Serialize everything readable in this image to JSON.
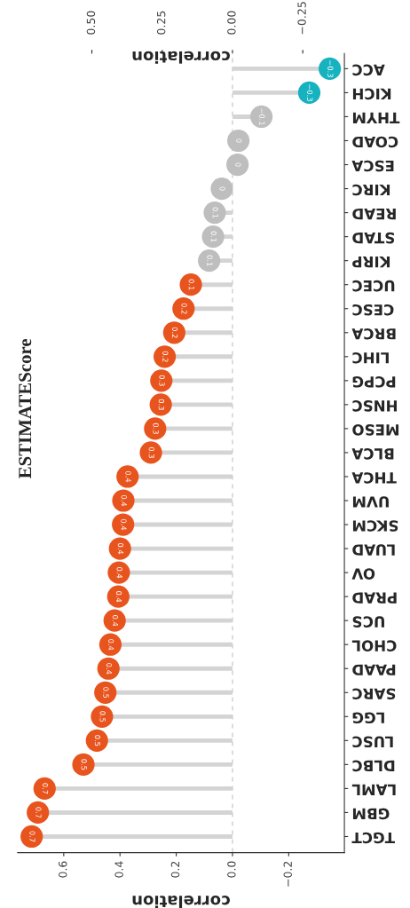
{
  "chart_data": {
    "type": "lollipop",
    "orientation": "horizontal",
    "title": "ESTIMATEScore",
    "xlabel": "correlation",
    "x2label": "correlation",
    "categories": [
      "ACC",
      "KICH",
      "THYM",
      "COAD",
      "ESCA",
      "KIRC",
      "READ",
      "STAD",
      "KIRP",
      "UCEC",
      "CESC",
      "BRCA",
      "LIHC",
      "PCPG",
      "HNSC",
      "MESO",
      "BLCA",
      "THCA",
      "UVM",
      "SKCM",
      "LUAD",
      "OV",
      "PRAD",
      "UCS",
      "CHOL",
      "PAAD",
      "SARC",
      "LGG",
      "LUSC",
      "DLBC",
      "LAML",
      "GBM",
      "TGCT"
    ],
    "values": [
      -0.346,
      -0.273,
      -0.103,
      -0.021,
      -0.018,
      0.038,
      0.063,
      0.069,
      0.083,
      0.148,
      0.174,
      0.207,
      0.241,
      0.253,
      0.255,
      0.275,
      0.29,
      0.373,
      0.388,
      0.389,
      0.4,
      0.404,
      0.406,
      0.419,
      0.434,
      0.441,
      0.452,
      0.464,
      0.482,
      0.53,
      0.668,
      0.692,
      0.714
    ],
    "value_labels": [
      "−0.3",
      "−0.3",
      "−0.1",
      "0",
      "0",
      "0",
      "0.1",
      "0.1",
      "0.1",
      "0.1",
      "0.2",
      "0.2",
      "0.2",
      "0.3",
      "0.3",
      "0.3",
      "0.3",
      "0.4",
      "0.4",
      "0.4",
      "0.4",
      "0.4",
      "0.4",
      "0.4",
      "0.4",
      "0.4",
      "0.5",
      "0.5",
      "0.5",
      "0.5",
      "0.7",
      "0.7",
      "0.7"
    ],
    "colors": [
      "#17b2c0",
      "#17b2c0",
      "#bebebe",
      "#bebebe",
      "#bebebe",
      "#bebebe",
      "#bebebe",
      "#bebebe",
      "#bebebe",
      "#e8541e",
      "#e8541e",
      "#e8541e",
      "#e8541e",
      "#e8541e",
      "#e8541e",
      "#e8541e",
      "#e8541e",
      "#e8541e",
      "#e8541e",
      "#e8541e",
      "#e8541e",
      "#e8541e",
      "#e8541e",
      "#e8541e",
      "#e8541e",
      "#e8541e",
      "#e8541e",
      "#e8541e",
      "#e8541e",
      "#e8541e",
      "#e8541e",
      "#e8541e",
      "#e8541e"
    ],
    "xlim": [
      0.764,
      -0.398
    ],
    "xticks": [
      0.6,
      0.4,
      0.2,
      {
        "value": 0,
        "label": "0.0"
      },
      {
        "value": -0.2,
        "label": "−0.2"
      }
    ],
    "x2lim": [
      0.764,
      -0.398
    ],
    "x2ticks": [
      {
        "value": 0.5,
        "label": "0.50"
      },
      {
        "value": 0.25,
        "label": "0.25"
      },
      {
        "value": 0,
        "label": "0.00"
      },
      {
        "value": -0.25,
        "label": "−0.25"
      }
    ],
    "ref_lines": [
      {
        "axis": "x",
        "value": 0,
        "color": "#c8c8c8",
        "line_style": "dashed"
      }
    ],
    "grid": false
  }
}
